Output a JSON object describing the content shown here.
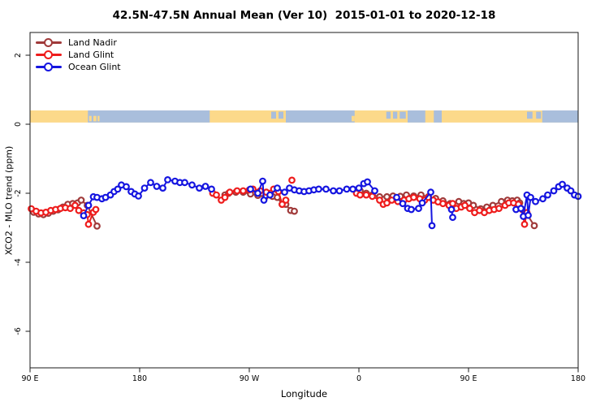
{
  "window": {
    "title": "42.5N-47.5N Annual Mean (Ver 10)  2015-01-01 to 2020-12-18"
  },
  "chart_data": {
    "type": "scatter",
    "title": "42.5N-47.5N Annual Mean (Ver 10)  2015-01-01 to 2020-12-18",
    "xlabel": "Longitude",
    "ylabel": "XCO2 - MLO trend (ppm)",
    "xlim": [
      0,
      450
    ],
    "ylim": [
      -7.06,
      2.66
    ],
    "x_axis_note": "x is longitude unrolled eastward from 90E: 0=90E, 90=180, 180=90W, 270=0, 360=90E, 450=180",
    "x_ticks": [
      {
        "pos": 0,
        "label": "90 E"
      },
      {
        "pos": 90,
        "label": "180"
      },
      {
        "pos": 180,
        "label": "90 W"
      },
      {
        "pos": 270,
        "label": "0"
      },
      {
        "pos": 360,
        "label": "90 E"
      },
      {
        "pos": 450,
        "label": "180"
      }
    ],
    "y_ticks": [
      {
        "pos": 2,
        "label": "2"
      },
      {
        "pos": 0,
        "label": "0"
      },
      {
        "pos": -2,
        "label": "-2"
      },
      {
        "pos": -4,
        "label": "-4"
      },
      {
        "pos": -6,
        "label": "-6"
      }
    ],
    "grid": false,
    "legend_position": "top-left",
    "map_strip": {
      "description": "land/ocean longitude strip for the 42.5N-47.5N band",
      "value_top": 0.4,
      "value_bottom": 0.05,
      "land_color": "#FCD98A",
      "ocean_color": "#A9BEDC",
      "ocean_segments": [
        [
          47.5,
          147.5
        ],
        [
          210,
          266.5
        ],
        [
          310,
          324.5
        ],
        [
          331.5,
          338
        ],
        [
          420.5,
          450
        ]
      ],
      "lake_segments": [
        [
          198,
          202
        ],
        [
          204,
          208
        ],
        [
          292.5,
          296
        ],
        [
          298,
          301.5
        ],
        [
          303.5,
          308.5
        ],
        [
          408,
          412.5
        ],
        [
          415.5,
          419.5
        ]
      ],
      "island_specks": [
        [
          48.5,
          50.5
        ],
        [
          52,
          54.5
        ],
        [
          55.5,
          57
        ],
        [
          264,
          266.5
        ],
        [
          267.5,
          269
        ]
      ]
    },
    "series": [
      {
        "name": "Land Nadir",
        "color": "#A03A3A",
        "segments": [
          [
            [
              3,
              -2.55
            ],
            [
              7,
              -2.6
            ],
            [
              11,
              -2.62
            ],
            [
              15,
              -2.58
            ],
            [
              19,
              -2.52
            ],
            [
              23,
              -2.48
            ],
            [
              27,
              -2.4
            ],
            [
              31,
              -2.32
            ],
            [
              35,
              -2.3
            ],
            [
              39,
              -2.28
            ],
            [
              42,
              -2.2
            ],
            [
              47,
              -2.35
            ],
            [
              55,
              -2.95
            ]
          ],
          [
            [
              160,
              -2.05
            ],
            [
              163,
              -2.0
            ],
            [
              169,
              -1.97
            ],
            [
              175,
              -1.97
            ],
            [
              181,
              -2.02
            ],
            [
              187,
              -2.06
            ],
            [
              193,
              -2.1
            ],
            [
              199,
              -2.09
            ],
            [
              203,
              -2.12
            ],
            [
              207,
              -2.32
            ],
            [
              210,
              -2.32
            ],
            [
              214,
              -2.5
            ],
            [
              217,
              -2.52
            ]
          ],
          [
            [
              271,
              -1.93
            ],
            [
              276,
              -2.0
            ],
            [
              281,
              -2.05
            ],
            [
              287,
              -2.1
            ],
            [
              293,
              -2.1
            ],
            [
              298,
              -2.08
            ],
            [
              304,
              -2.09
            ],
            [
              309,
              -2.05
            ],
            [
              315,
              -2.08
            ],
            [
              321,
              -2.05
            ],
            [
              327,
              -2.1
            ],
            [
              333,
              -2.15
            ],
            [
              339,
              -2.22
            ],
            [
              345,
              -2.3
            ],
            [
              352,
              -2.24
            ],
            [
              356,
              -2.3
            ],
            [
              360,
              -2.28
            ],
            [
              364,
              -2.35
            ],
            [
              370,
              -2.45
            ],
            [
              375,
              -2.4
            ],
            [
              380,
              -2.35
            ],
            [
              387,
              -2.24
            ],
            [
              392,
              -2.2
            ],
            [
              396,
              -2.22
            ],
            [
              400,
              -2.2
            ],
            [
              402,
              -2.28
            ],
            [
              414,
              -2.94
            ]
          ]
        ]
      },
      {
        "name": "Land Glint",
        "color": "#EE1C1C",
        "segments": [
          [
            [
              1,
              -2.45
            ],
            [
              5,
              -2.52
            ],
            [
              9,
              -2.57
            ],
            [
              13,
              -2.55
            ],
            [
              17,
              -2.5
            ],
            [
              21,
              -2.47
            ],
            [
              25,
              -2.44
            ],
            [
              29,
              -2.42
            ],
            [
              33,
              -2.44
            ],
            [
              37,
              -2.35
            ],
            [
              40,
              -2.5
            ],
            [
              44,
              -2.57
            ],
            [
              47,
              -2.62
            ],
            [
              48,
              -2.9
            ],
            [
              52,
              -2.55
            ],
            [
              54,
              -2.47
            ]
          ],
          [
            [
              150,
              -2.0
            ],
            [
              153,
              -2.05
            ],
            [
              157,
              -2.2
            ],
            [
              160,
              -2.12
            ],
            [
              164,
              -1.97
            ],
            [
              170,
              -1.93
            ],
            [
              175,
              -1.93
            ],
            [
              180,
              -1.9
            ],
            [
              183,
              -1.88
            ],
            [
              189,
              -1.93
            ],
            [
              194,
              -1.97
            ],
            [
              200,
              -1.88
            ],
            [
              204,
              -1.95
            ],
            [
              207,
              -2.32
            ],
            [
              210,
              -2.2
            ]
          ],
          [
            [
              215,
              -1.62
            ]
          ],
          [
            [
              268,
              -2.0
            ],
            [
              271,
              -2.05
            ],
            [
              276,
              -2.05
            ],
            [
              281,
              -2.09
            ],
            [
              287,
              -2.2
            ],
            [
              290,
              -2.32
            ],
            [
              293,
              -2.28
            ],
            [
              297,
              -2.2
            ],
            [
              302,
              -2.24
            ],
            [
              307,
              -2.2
            ],
            [
              311,
              -2.16
            ],
            [
              315,
              -2.12
            ],
            [
              320,
              -2.16
            ],
            [
              324,
              -2.2
            ],
            [
              327,
              -2.12
            ],
            [
              331,
              -2.2
            ],
            [
              335,
              -2.25
            ],
            [
              339,
              -2.3
            ],
            [
              344,
              -2.35
            ],
            [
              347,
              -2.3
            ],
            [
              350,
              -2.44
            ],
            [
              354,
              -2.4
            ],
            [
              357,
              -2.35
            ],
            [
              361,
              -2.44
            ],
            [
              365,
              -2.56
            ],
            [
              369,
              -2.5
            ],
            [
              373,
              -2.56
            ],
            [
              377,
              -2.5
            ],
            [
              381,
              -2.47
            ],
            [
              385,
              -2.44
            ],
            [
              390,
              -2.35
            ],
            [
              393,
              -2.28
            ],
            [
              397,
              -2.28
            ],
            [
              401,
              -2.32
            ],
            [
              404,
              -2.47
            ],
            [
              406,
              -2.9
            ],
            [
              408,
              -2.56
            ]
          ]
        ]
      },
      {
        "name": "Ocean Glint",
        "color": "#1515E0",
        "segments": [
          [
            [
              44,
              -2.65
            ],
            [
              48,
              -2.35
            ],
            [
              52,
              -2.1
            ],
            [
              55,
              -2.12
            ],
            [
              59,
              -2.16
            ],
            [
              62,
              -2.12
            ],
            [
              66,
              -2.05
            ],
            [
              69,
              -1.95
            ],
            [
              72,
              -1.88
            ],
            [
              75,
              -1.76
            ],
            [
              79,
              -1.81
            ],
            [
              83,
              -1.95
            ],
            [
              86,
              -2.02
            ],
            [
              89,
              -2.08
            ],
            [
              94,
              -1.85
            ],
            [
              99,
              -1.69
            ],
            [
              104,
              -1.8
            ],
            [
              109,
              -1.85
            ],
            [
              113,
              -1.61
            ],
            [
              119,
              -1.65
            ],
            [
              123,
              -1.69
            ],
            [
              127,
              -1.69
            ],
            [
              133,
              -1.76
            ],
            [
              139,
              -1.85
            ],
            [
              144,
              -1.8
            ],
            [
              149,
              -1.88
            ]
          ],
          [
            [
              181,
              -1.88
            ],
            [
              187,
              -2.0
            ],
            [
              191,
              -1.65
            ],
            [
              192,
              -2.2
            ],
            [
              197,
              -2.05
            ],
            [
              203,
              -1.85
            ],
            [
              209,
              -1.97
            ],
            [
              213,
              -1.85
            ],
            [
              217,
              -1.9
            ],
            [
              221,
              -1.93
            ],
            [
              225,
              -1.95
            ],
            [
              229,
              -1.93
            ],
            [
              233,
              -1.9
            ],
            [
              237,
              -1.88
            ],
            [
              243,
              -1.88
            ],
            [
              249,
              -1.93
            ],
            [
              254,
              -1.93
            ],
            [
              260,
              -1.88
            ],
            [
              265,
              -1.88
            ],
            [
              270,
              -1.85
            ],
            [
              274,
              -1.72
            ],
            [
              277,
              -1.67
            ],
            [
              283,
              -1.93
            ]
          ],
          [
            [
              301,
              -2.12
            ],
            [
              306,
              -2.3
            ],
            [
              310,
              -2.44
            ],
            [
              313,
              -2.47
            ],
            [
              319,
              -2.44
            ],
            [
              322,
              -2.28
            ],
            [
              329,
              -1.97
            ],
            [
              330,
              -2.94
            ]
          ],
          [
            [
              346,
              -2.47
            ],
            [
              347,
              -2.7
            ]
          ],
          [
            [
              399,
              -2.47
            ],
            [
              403,
              -2.44
            ],
            [
              405,
              -2.67
            ],
            [
              408,
              -2.05
            ],
            [
              409,
              -2.64
            ],
            [
              411,
              -2.12
            ],
            [
              415,
              -2.24
            ],
            [
              421,
              -2.16
            ],
            [
              425,
              -2.05
            ],
            [
              430,
              -1.93
            ],
            [
              434,
              -1.81
            ],
            [
              437,
              -1.74
            ],
            [
              441,
              -1.85
            ],
            [
              444,
              -1.93
            ],
            [
              447,
              -2.05
            ],
            [
              450,
              -2.09
            ]
          ]
        ]
      }
    ]
  }
}
